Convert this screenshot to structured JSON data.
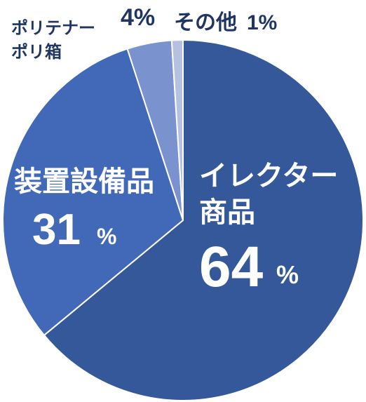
{
  "chart_data": {
    "type": "pie",
    "slices": [
      {
        "label_lines": [
          "イレクター",
          "商品"
        ],
        "value": 64,
        "value_text": "64",
        "unit": "%",
        "color": "#34589a"
      },
      {
        "label_lines": [
          "装置設備品"
        ],
        "value": 31,
        "value_text": "31",
        "unit": "%",
        "color": "#4169b8"
      },
      {
        "label_lines": [
          "ポリテナー",
          "ポリ箱"
        ],
        "value": 4,
        "value_text": "4%",
        "unit": "",
        "color": "#7a93cf"
      },
      {
        "label_lines": [
          "その他"
        ],
        "value": 1,
        "value_text": "1%",
        "unit": "",
        "color": "#b6c0df"
      }
    ]
  }
}
